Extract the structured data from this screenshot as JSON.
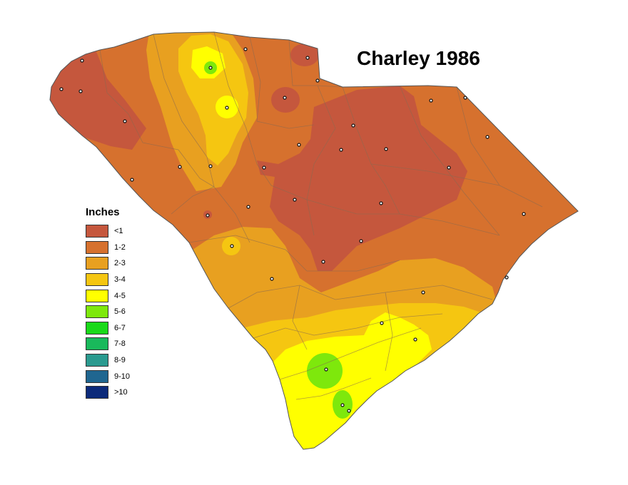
{
  "map": {
    "title": "Charley 1986",
    "colors": {
      "outline": "#555555",
      "county_line": "#8a6a50",
      "station": "#111111"
    },
    "bands": [
      {
        "label": "<1",
        "color": "#c5573d"
      },
      {
        "label": "1-2",
        "color": "#d6712e"
      },
      {
        "label": "2-3",
        "color": "#e8a020"
      },
      {
        "label": "3-4",
        "color": "#f5c611"
      },
      {
        "label": "4-5",
        "color": "#ffff00"
      },
      {
        "label": "5-6",
        "color": "#7ee80c"
      },
      {
        "label": "6-7",
        "color": "#19d919"
      },
      {
        "label": "7-8",
        "color": "#19b95b"
      },
      {
        "label": "8-9",
        "color": "#2a9a8f"
      },
      {
        "label": "9-10",
        "color": "#1f6690"
      },
      {
        "label": ">10",
        "color": "#0c2a7a"
      }
    ]
  },
  "legend": {
    "title": "Inches"
  }
}
